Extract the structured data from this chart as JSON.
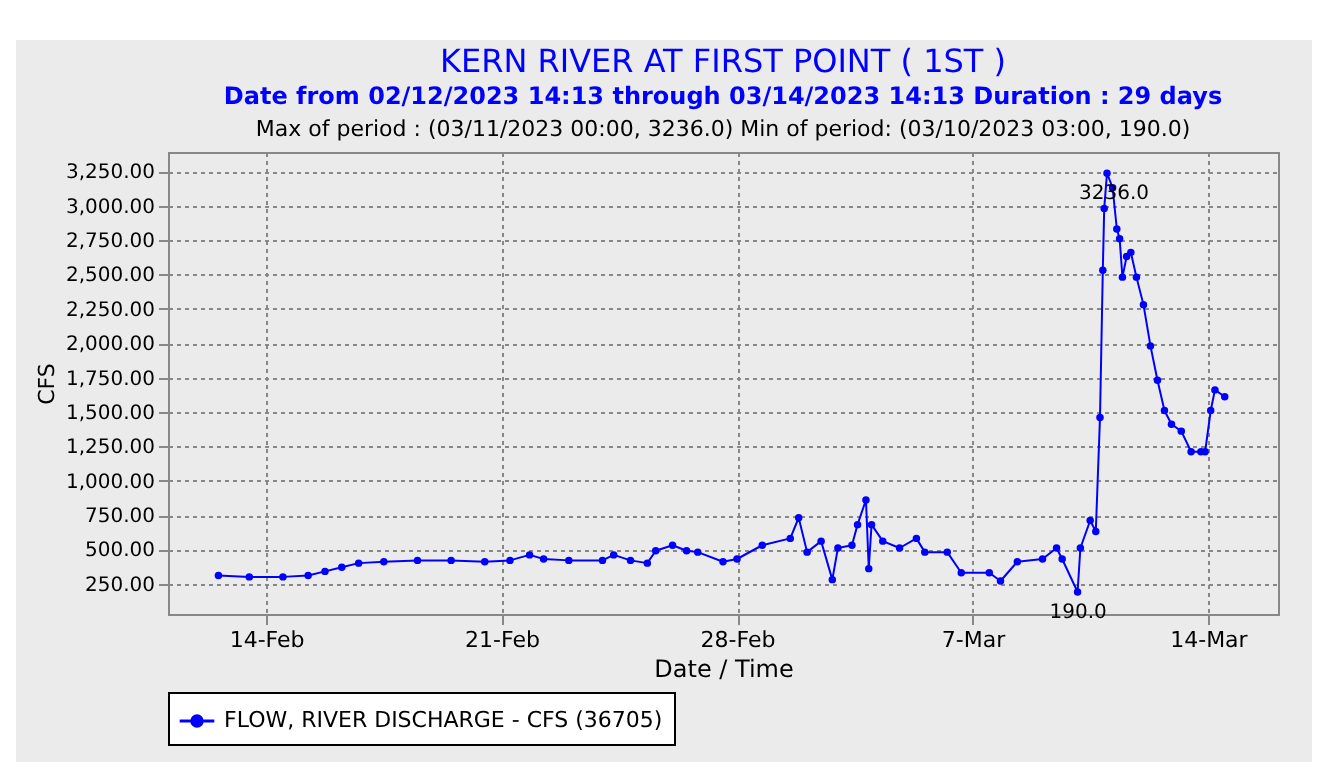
{
  "chart_data": {
    "type": "line",
    "title": "KERN RIVER AT FIRST POINT ( 1ST )",
    "subtitle": "Date from 02/12/2023 14:13 through 03/14/2023 14:13 Duration : 29 days",
    "xlabel": "Date / Time",
    "ylabel": "CFS",
    "annotations": [
      "Max of period : (03/11/2023 00:00, 3236.0)  Min of period: (03/10/2023 03:00,  190.0)",
      {
        "text": "3236.0",
        "x": "2023-03-11T00:00",
        "y": 3236
      },
      {
        "text": "190.0",
        "x": "2023-03-10T03:00",
        "y": 190
      }
    ],
    "x": [
      "2023-02-12T14:00",
      "2023-02-13T12:00",
      "2023-02-14T12:00",
      "2023-02-15T06:00",
      "2023-02-15T18:00",
      "2023-02-16T06:00",
      "2023-02-16T18:00",
      "2023-02-17T12:00",
      "2023-02-18T12:00",
      "2023-02-19T12:00",
      "2023-02-20T12:00",
      "2023-02-21T06:00",
      "2023-02-21T20:00",
      "2023-02-22T06:00",
      "2023-02-23T00:00",
      "2023-02-24T00:00",
      "2023-02-24T08:00",
      "2023-02-24T20:00",
      "2023-02-25T08:00",
      "2023-02-25T14:00",
      "2023-02-26T02:00",
      "2023-02-26T12:00",
      "2023-02-26T20:00",
      "2023-02-27T14:00",
      "2023-02-28T00:00",
      "2023-02-28T18:00",
      "2023-03-01T14:00",
      "2023-03-01T20:00",
      "2023-03-02T02:00",
      "2023-03-02T12:00",
      "2023-03-02T20:00",
      "2023-03-03T00:00",
      "2023-03-03T10:00",
      "2023-03-03T14:00",
      "2023-03-03T20:00",
      "2023-03-03T22:00",
      "2023-03-04T00:00",
      "2023-03-04T08:00",
      "2023-03-04T20:00",
      "2023-03-05T08:00",
      "2023-03-05T14:00",
      "2023-03-06T06:00",
      "2023-03-06T16:00",
      "2023-03-07T12:00",
      "2023-03-07T20:00",
      "2023-03-08T08:00",
      "2023-03-09T02:00",
      "2023-03-09T12:00",
      "2023-03-09T16:00",
      "2023-03-10T03:00",
      "2023-03-10T05:00",
      "2023-03-10T12:00",
      "2023-03-10T16:00",
      "2023-03-10T19:00",
      "2023-03-10T21:00",
      "2023-03-10T22:00",
      "2023-03-11T00:00",
      "2023-03-11T04:00",
      "2023-03-11T07:00",
      "2023-03-11T09:00",
      "2023-03-11T11:00",
      "2023-03-11T14:00",
      "2023-03-11T17:00",
      "2023-03-11T21:00",
      "2023-03-12T02:00",
      "2023-03-12T07:00",
      "2023-03-12T12:00",
      "2023-03-12T17:00",
      "2023-03-12T22:00",
      "2023-03-13T05:00",
      "2023-03-13T12:00",
      "2023-03-13T19:00",
      "2023-03-13T22:00",
      "2023-03-14T02:00",
      "2023-03-14T05:00",
      "2023-03-14T12:00"
    ],
    "series": [
      {
        "name": "FLOW, RIVER DISCHARGE - CFS (36705)",
        "color": "#0000ff",
        "values": [
          310,
          300,
          300,
          310,
          340,
          370,
          400,
          410,
          420,
          420,
          410,
          420,
          460,
          430,
          420,
          420,
          460,
          420,
          400,
          490,
          530,
          490,
          480,
          410,
          430,
          530,
          580,
          730,
          480,
          560,
          280,
          510,
          530,
          680,
          860,
          360,
          680,
          560,
          510,
          580,
          480,
          480,
          330,
          330,
          270,
          410,
          430,
          510,
          430,
          190,
          510,
          710,
          630,
          1460,
          2530,
          2980,
          3236,
          3130,
          2830,
          2760,
          2480,
          2630,
          2660,
          2480,
          2280,
          1980,
          1730,
          1510,
          1410,
          1360,
          1210,
          1210,
          1210,
          1510,
          1660,
          1610
        ]
      }
    ],
    "xlim": [
      "2023-02-11T02:00",
      "2023-03-16T02:00"
    ],
    "xticks": [
      {
        "value": "2023-02-14",
        "label": "14-Feb"
      },
      {
        "value": "2023-02-21",
        "label": "21-Feb"
      },
      {
        "value": "2023-02-28",
        "label": "28-Feb"
      },
      {
        "value": "2023-03-07",
        "label": "7-Mar"
      },
      {
        "value": "2023-03-14",
        "label": "14-Mar"
      }
    ],
    "ylim": [
      30,
      3390
    ],
    "yticks": [
      {
        "value": 250,
        "label": "250.00"
      },
      {
        "value": 500,
        "label": "500.00"
      },
      {
        "value": 750,
        "label": "750.00"
      },
      {
        "value": 1000,
        "label": "1,000.00"
      },
      {
        "value": 1250,
        "label": "1,250.00"
      },
      {
        "value": 1500,
        "label": "1,500.00"
      },
      {
        "value": 1750,
        "label": "1,750.00"
      },
      {
        "value": 2000,
        "label": "2,000.00"
      },
      {
        "value": 2250,
        "label": "2,250.00"
      },
      {
        "value": 2500,
        "label": "2,500.00"
      },
      {
        "value": 2750,
        "label": "2,750.00"
      },
      {
        "value": 3000,
        "label": "3,000.00"
      },
      {
        "value": 3250,
        "label": "3,250.00"
      }
    ],
    "grid": true,
    "legend": "bottom",
    "marker": "circle",
    "line_style": "solid"
  }
}
